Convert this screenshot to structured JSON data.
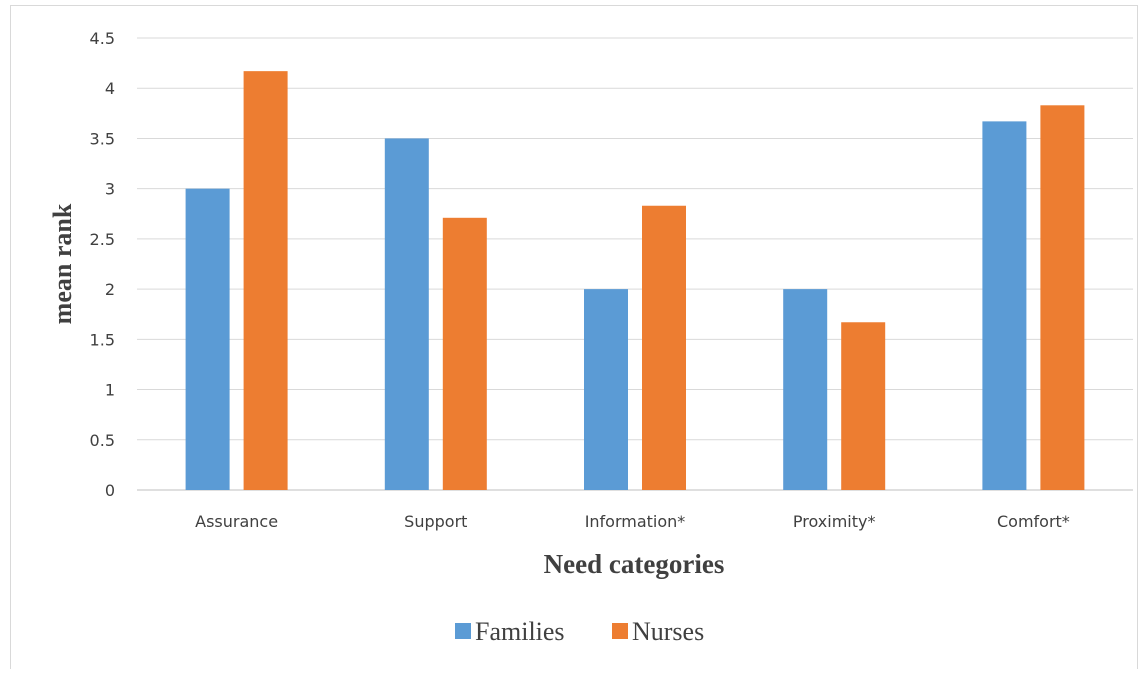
{
  "chart_data": {
    "type": "bar",
    "title": "",
    "xlabel": "Need categories",
    "ylabel": "mean rank",
    "categories": [
      "Assurance",
      "Support",
      "Information*",
      "Proximity*",
      "Comfort*"
    ],
    "series": [
      {
        "name": "Families",
        "color": "#5b9bd5",
        "values": [
          3.0,
          3.5,
          2.0,
          2.0,
          3.67
        ]
      },
      {
        "name": "Nurses",
        "color": "#ed7d31",
        "values": [
          4.17,
          2.71,
          2.83,
          1.67,
          3.83
        ]
      }
    ],
    "ylim": [
      0,
      4.5
    ],
    "yticks": [
      "0",
      "0.5",
      "1",
      "1.5",
      "2",
      "2.5",
      "3",
      "3.5",
      "4",
      "4.5"
    ],
    "grid": true,
    "legend_position": "bottom"
  }
}
